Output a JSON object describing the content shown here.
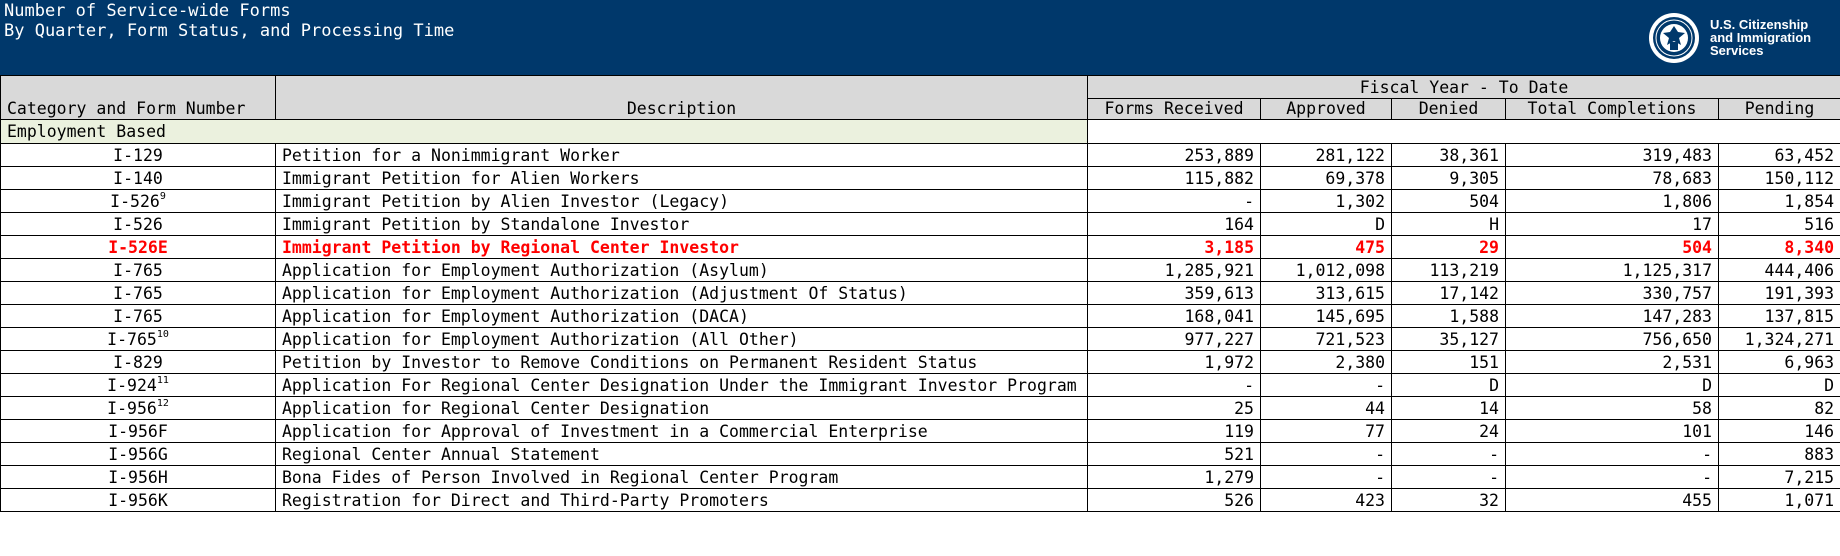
{
  "header": {
    "title_line1": "Number of Service-wide Forms",
    "title_line2": "By Quarter, Form Status, and Processing Time",
    "agency_line1": "U.S. Citizenship",
    "agency_line2": "and Immigration",
    "agency_line3": "Services",
    "background_color": "#00386b"
  },
  "table": {
    "col_category": "Category and Form Number",
    "col_description": "Description",
    "group_label": "Fiscal Year - To Date",
    "col_received": "Forms Received",
    "col_approved": "Approved",
    "col_denied": "Denied",
    "col_completions": "Total Completions",
    "col_pending": "Pending",
    "section": "Employment Based",
    "highlight_color": "#ff0000",
    "rows": [
      {
        "form": "I-129",
        "sup": "",
        "desc": "Petition for a Nonimmigrant Worker",
        "received": "253,889",
        "approved": "281,122",
        "denied": "38,361",
        "completions": "319,483",
        "pending": "63,452"
      },
      {
        "form": "I-140",
        "sup": "",
        "desc": "Immigrant Petition for Alien Workers",
        "received": "115,882",
        "approved": "69,378",
        "denied": "9,305",
        "completions": "78,683",
        "pending": "150,112"
      },
      {
        "form": "I-526",
        "sup": "9",
        "desc": "Immigrant Petition by Alien Investor (Legacy)",
        "received": "-",
        "approved": "1,302",
        "denied": "504",
        "completions": "1,806",
        "pending": "1,854"
      },
      {
        "form": "I-526",
        "sup": "",
        "desc": "Immigrant Petition by Standalone Investor",
        "received": "164",
        "approved": "D",
        "denied": "H",
        "completions": "17",
        "pending": "516"
      },
      {
        "form": "I-526E",
        "sup": "",
        "desc": "Immigrant Petition by Regional Center Investor",
        "received": "3,185",
        "approved": "475",
        "denied": "29",
        "completions": "504",
        "pending": "8,340",
        "highlight": true
      },
      {
        "form": "I-765",
        "sup": "",
        "desc": "Application for Employment Authorization (Asylum)",
        "received": "1,285,921",
        "approved": "1,012,098",
        "denied": "113,219",
        "completions": "1,125,317",
        "pending": "444,406"
      },
      {
        "form": "I-765",
        "sup": "",
        "desc": "Application for Employment Authorization (Adjustment Of Status)",
        "received": "359,613",
        "approved": "313,615",
        "denied": "17,142",
        "completions": "330,757",
        "pending": "191,393"
      },
      {
        "form": "I-765",
        "sup": "",
        "desc": "Application for Employment Authorization (DACA)",
        "received": "168,041",
        "approved": "145,695",
        "denied": "1,588",
        "completions": "147,283",
        "pending": "137,815"
      },
      {
        "form": "I-765",
        "sup": "10",
        "desc": "Application for Employment Authorization (All Other)",
        "received": "977,227",
        "approved": "721,523",
        "denied": "35,127",
        "completions": "756,650",
        "pending": "1,324,271"
      },
      {
        "form": "I-829",
        "sup": "",
        "desc": "Petition by Investor to Remove Conditions on Permanent Resident Status",
        "received": "1,972",
        "approved": "2,380",
        "denied": "151",
        "completions": "2,531",
        "pending": "6,963"
      },
      {
        "form": "I-924",
        "sup": "11",
        "desc": "Application For Regional Center Designation Under the Immigrant Investor Program",
        "received": "-",
        "approved": "-",
        "denied": "D",
        "completions": "D",
        "pending": "D"
      },
      {
        "form": "I-956",
        "sup": "12",
        "desc": "Application for Regional Center Designation",
        "received": "25",
        "approved": "44",
        "denied": "14",
        "completions": "58",
        "pending": "82"
      },
      {
        "form": "I-956F",
        "sup": "",
        "desc": "Application for Approval of Investment in a Commercial Enterprise",
        "received": "119",
        "approved": "77",
        "denied": "24",
        "completions": "101",
        "pending": "146"
      },
      {
        "form": "I-956G",
        "sup": "",
        "desc": "Regional Center Annual Statement",
        "received": "521",
        "approved": "-",
        "denied": "-",
        "completions": "-",
        "pending": "883"
      },
      {
        "form": "I-956H",
        "sup": "",
        "desc": "Bona Fides of Person Involved in Regional Center Program",
        "received": "1,279",
        "approved": "-",
        "denied": "-",
        "completions": "-",
        "pending": "7,215"
      },
      {
        "form": "I-956K",
        "sup": "",
        "desc": "Registration for Direct and Third-Party Promoters",
        "received": "526",
        "approved": "423",
        "denied": "32",
        "completions": "455",
        "pending": "1,071"
      }
    ]
  }
}
